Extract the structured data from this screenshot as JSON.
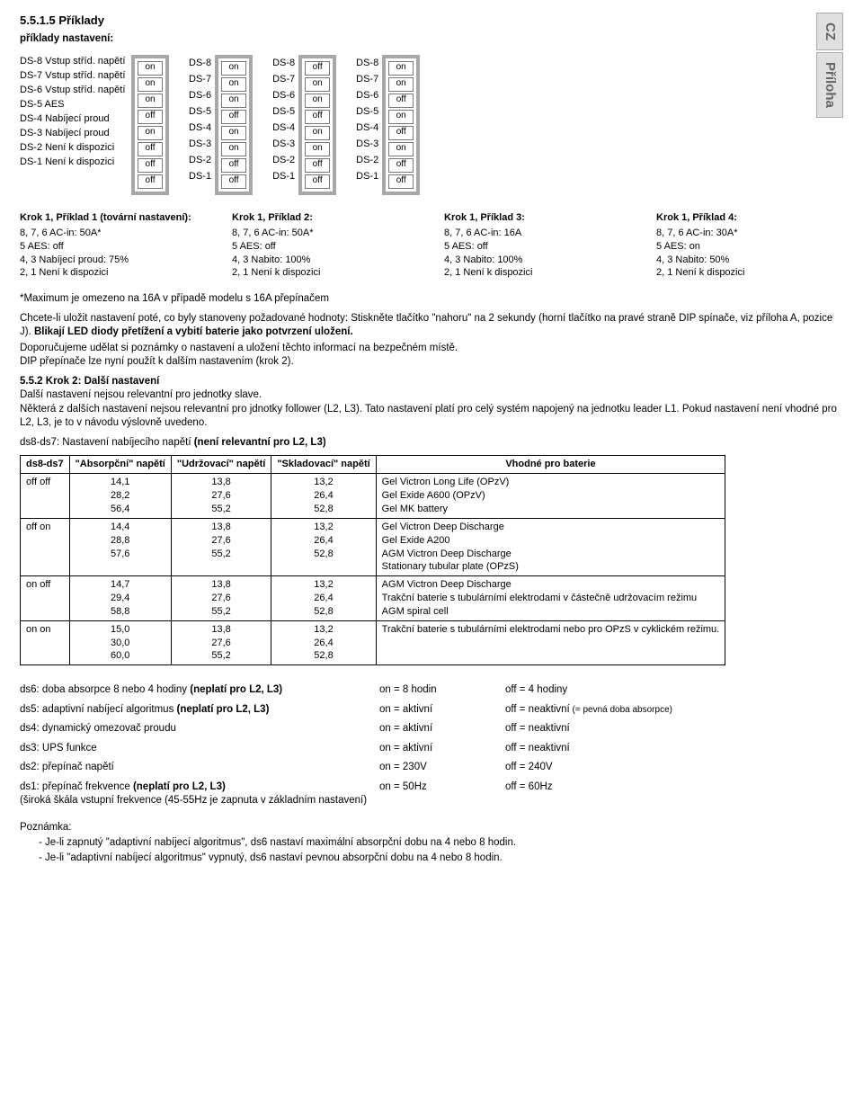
{
  "side_tabs": [
    "CZ",
    "Příloha"
  ],
  "header": {
    "num": "5.5.1.5 Příklady",
    "sub": "příklady nastavení:"
  },
  "ex1": {
    "labels": [
      "DS-8 Vstup stříd. napětí",
      "DS-7 Vstup stříd. napětí",
      "DS-6 Vstup stříd. napětí",
      "DS-5 AES",
      "DS-4 Nabíjecí proud",
      "DS-3 Nabíjecí proud",
      "DS-2  Není  k dispozici",
      "DS-1 Není k dispozici"
    ],
    "vals": [
      "on",
      "on",
      "on",
      "off",
      "on",
      "off",
      "off",
      "off"
    ]
  },
  "ex2": {
    "labels": [
      "DS-8",
      "DS-7",
      "DS-6",
      "DS-5",
      "DS-4",
      "DS-3",
      "DS-2",
      "DS-1"
    ],
    "vals": [
      "on",
      "on",
      "on",
      "off",
      "on",
      "on",
      "off",
      "off"
    ]
  },
  "ex3": {
    "labels": [
      "DS-8",
      "DS-7",
      "DS-6",
      "DS-5",
      "DS-4",
      "DS-3",
      "DS-2",
      "DS-1"
    ],
    "vals": [
      "off",
      "on",
      "on",
      "off",
      "on",
      "on",
      "off",
      "off"
    ]
  },
  "ex4": {
    "labels": [
      "DS-8",
      "DS-7",
      "DS-6",
      "DS-5",
      "DS-4",
      "DS-3",
      "DS-2",
      "DS-1"
    ],
    "vals": [
      "on",
      "on",
      "off",
      "on",
      "off",
      "on",
      "off",
      "off"
    ]
  },
  "krok": [
    {
      "hdr": "Krok 1, Příklad 1 (tovární nastavení):",
      "lines": [
        "8, 7, 6 AC-in: 50A*",
        "5 AES: off",
        "4, 3 Nabíjecí proud: 75%",
        "2, 1 Není k dispozici"
      ]
    },
    {
      "hdr": "Krok 1, Příklad 2:",
      "lines": [
        "8, 7, 6 AC-in: 50A*",
        "5 AES: off",
        "4, 3 Nabito: 100%",
        "2, 1 Není k dispozici"
      ]
    },
    {
      "hdr": "Krok 1, Příklad 3:",
      "lines": [
        "8, 7, 6 AC-in: 16A",
        "5 AES: off",
        "4, 3 Nabito: 100%",
        "2, 1 Není k dispozici"
      ]
    },
    {
      "hdr": "Krok 1, Příklad 4:",
      "lines": [
        "8, 7, 6 AC-in: 30A*",
        "5 AES: on",
        "4, 3 Nabito: 50%",
        "2, 1 Není k dispozici"
      ]
    }
  ],
  "text": {
    "max": "*Maximum je omezeno na 16A v případě modelu s 16A přepínačem",
    "save1": "Chcete-li uložit nastavení poté, co byly stanoveny požadované hodnoty: Stiskněte tlačítko \"nahoru\" na 2 sekundy ",
    "save1b": "(horní tlačítko na pravé straně DIP spínače, viz příloha A, pozice J). ",
    "save1c": "Blikají LED diody přetížení a vybití baterie jako potvrzení uložení.",
    "rec1": "Doporučujeme udělat si poznámky o nastavení a uložení těchto informací na bezpečném místě.",
    "rec2": "DIP přepínače lze nyní použít k dalším nastavením (krok 2).",
    "step2_hdr": "5.5.2 Krok 2: Další nastavení",
    "step2_a": "Další nastavení nejsou relevantní pro jednotky slave.",
    "step2_b": "Některá z dalších nastavení nejsou relevantní pro jdnotky follower (L2, L3). Tato nastavení platí pro celý systém napojený na jednotku leader L1. Pokud nastavení není vhodné pro L2, L3, je to v návodu výslovně uvedeno.",
    "ds8_intro_a": "ds8-ds7: Nastavení nabíjecího napětí ",
    "ds8_intro_b": "(není relevantní pro L2, L3)"
  },
  "voltage": {
    "headers": [
      "ds8-ds7",
      "\"Absorpční\" napětí",
      "\"Udržovací\" napětí",
      "\"Skladovací\" napětí",
      "Vhodné pro baterie"
    ],
    "rows": [
      {
        "sw": "off  off",
        "a": "14,1\n28,2\n56,4",
        "u": "13,8\n27,6\n55,2",
        "s": "13,2\n26,4\n52,8",
        "b": "Gel Victron Long Life (OPzV)\nGel Exide A600 (OPzV)\nGel MK battery"
      },
      {
        "sw": "off  on",
        "a": "14,4\n28,8\n57,6",
        "u": "13,8\n27,6\n55,2",
        "s": "13,2\n26,4\n52,8",
        "b": "Gel Victron Deep Discharge\nGel Exide A200\nAGM Victron Deep Discharge\nStationary tubular plate (OPzS)"
      },
      {
        "sw": "on  off",
        "a": "14,7\n29,4\n58,8",
        "u": "13,8\n27,6\n55,2",
        "s": "13,2\n26,4\n52,8",
        "b": "AGM Victron Deep Discharge\nTrakční baterie s tubulárními elektrodami v částečně udržovacím režimu\nAGM spiral cell"
      },
      {
        "sw": "on  on",
        "a": "15,0\n30,0\n60,0",
        "u": "13,8\n27,6\n55,2",
        "s": "13,2\n26,4\n52,8",
        "b": "Trakční baterie s tubulárními elektrodami nebo pro OPzS v cyklickém režimu."
      }
    ]
  },
  "settings": [
    {
      "lab_a": "ds6: doba absorpce 8 nebo 4 hodiny ",
      "lab_b": "(neplatí pro L2, L3)",
      "v1": "on = 8 hodin",
      "v2": "off = 4 hodiny"
    },
    {
      "lab_a": "ds5: adaptivní nabíjecí algoritmus ",
      "lab_b": "(neplatí pro L2, L3)",
      "v1": "on = aktivní",
      "v2": "off = neaktivní",
      "v2s": " (= pevná doba absorpce)"
    },
    {
      "lab_a": "ds4: dynamický omezovač proudu",
      "lab_b": "",
      "v1": "on = aktivní",
      "v2": "off = neaktivní"
    },
    {
      "lab_a": "ds3: UPS funkce",
      "lab_b": "",
      "v1": "on = aktivní",
      "v2": "off = neaktivní"
    },
    {
      "lab_a": "ds2: přepínač napětí",
      "lab_b": "",
      "v1": "on = 230V",
      "v2": "off = 240V"
    },
    {
      "lab_a": "ds1: přepínač frekvence ",
      "lab_b": "(neplatí pro L2, L3)",
      "sub": "(široká škála vstupní frekvence (45-55Hz je zapnuta v základním nastavení)",
      "v1": "on = 50Hz",
      "v2": "off = 60Hz"
    }
  ],
  "note": {
    "hdr": "Poznámka:",
    "items": [
      "Je-li zapnutý \"adaptivní nabíjecí algoritmus\", ds6 nastaví maximální absorpční dobu na 4 nebo 8 hodin.",
      "Je-li \"adaptivní nabíjecí algoritmus\" vypnutý, ds6 nastaví pevnou absorpční dobu na 4 nebo 8 hodin."
    ]
  }
}
